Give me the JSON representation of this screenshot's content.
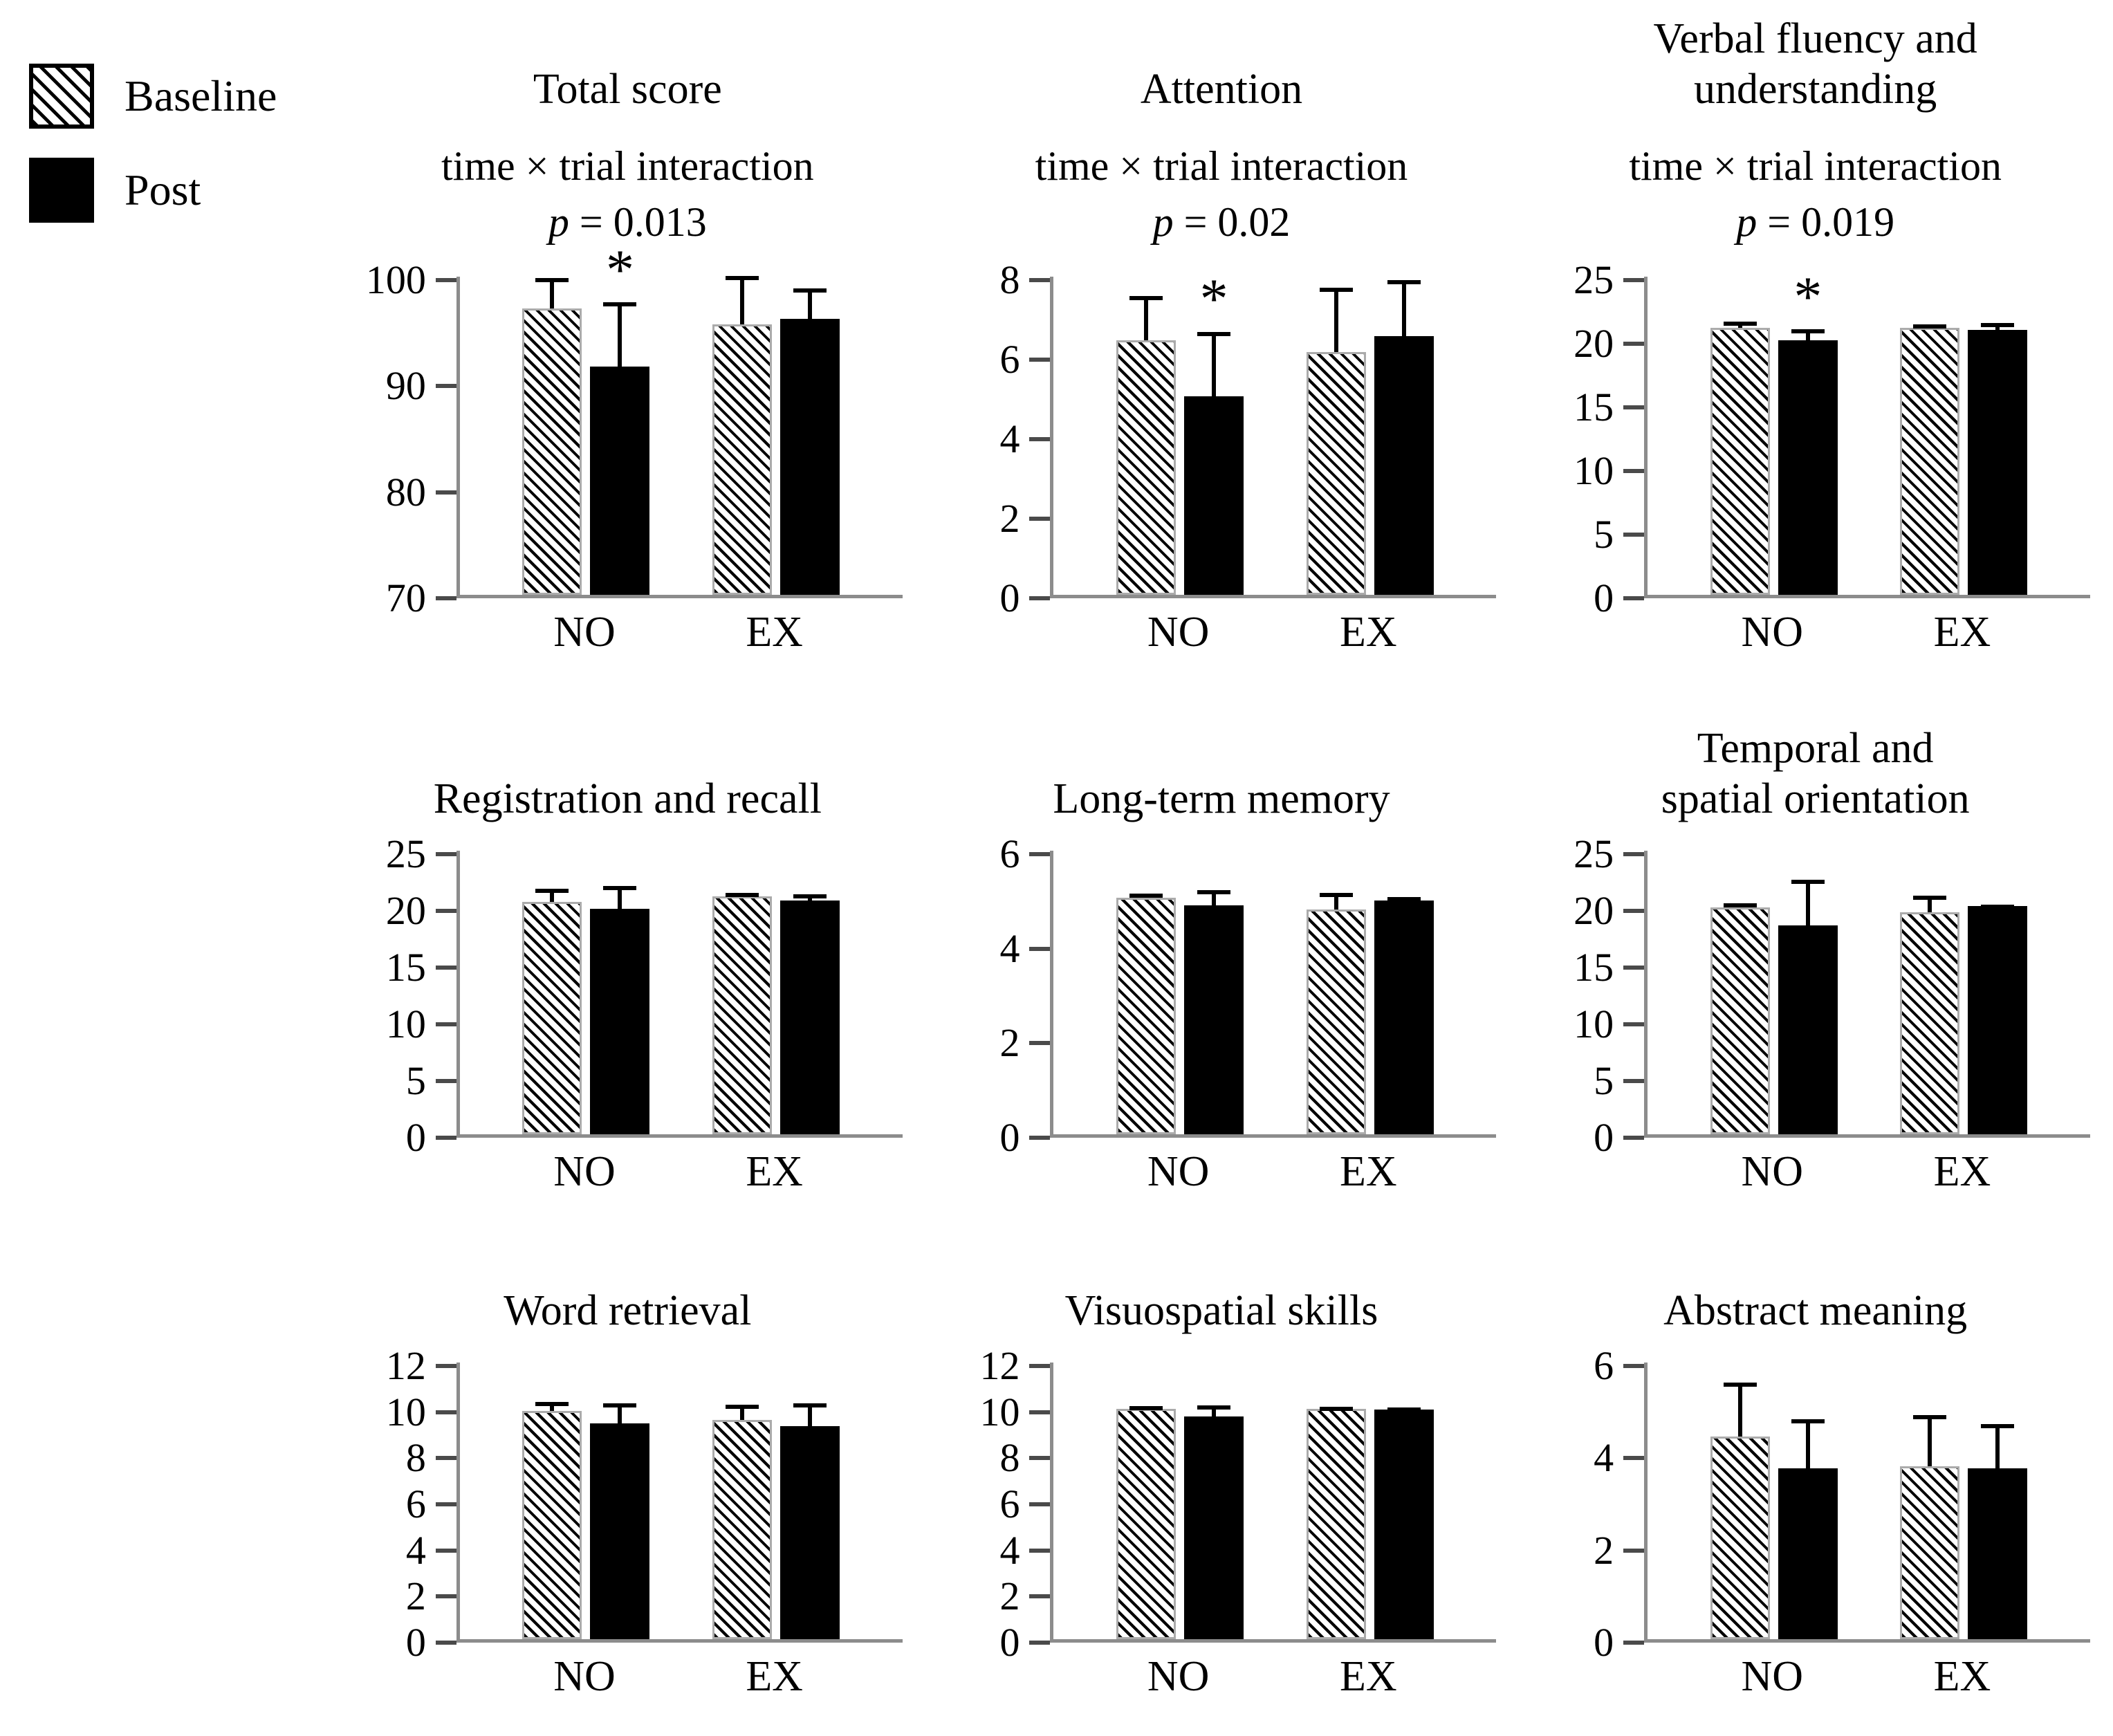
{
  "figure_title": "",
  "legend": {
    "position": "top-left",
    "items": [
      {
        "label": "Baseline",
        "swatch": "hatched-diagonal",
        "color": "#000000"
      },
      {
        "label": "Post",
        "swatch": "solid",
        "color": "#000000"
      }
    ]
  },
  "colors": {
    "bar_fill": "#000000",
    "hatch_line": "#000000",
    "axis_line": "#8c8c8c",
    "text": "#000000"
  },
  "categories": [
    "NO",
    "EX"
  ],
  "series_names": [
    "Baseline",
    "Post"
  ],
  "significance_marker": "*",
  "chart_data": [
    {
      "type": "bar",
      "title_lines": [
        "Total score"
      ],
      "subtitle_lines": [
        "time × trial interaction",
        "p = 0.013"
      ],
      "ymin": 70,
      "ymax": 100,
      "yticks": [
        70,
        80,
        90,
        100
      ],
      "grid": false,
      "groups": [
        {
          "category": "NO",
          "bars": [
            {
              "series": "Baseline",
              "value": 97.0,
              "error_up": 2.8
            },
            {
              "series": "Post",
              "value": 91.5,
              "error_up": 6.0,
              "asterisk": true
            }
          ]
        },
        {
          "category": "EX",
          "bars": [
            {
              "series": "Baseline",
              "value": 95.5,
              "error_up": 4.5
            },
            {
              "series": "Post",
              "value": 96.0,
              "error_up": 2.8
            }
          ]
        }
      ]
    },
    {
      "type": "bar",
      "title_lines": [
        "Attention"
      ],
      "subtitle_lines": [
        "time × trial interaction",
        "p = 0.02"
      ],
      "ymin": 0,
      "ymax": 8,
      "yticks": [
        0,
        2,
        4,
        6,
        8
      ],
      "grid": false,
      "groups": [
        {
          "category": "NO",
          "bars": [
            {
              "series": "Baseline",
              "value": 6.4,
              "error_up": 1.1
            },
            {
              "series": "Post",
              "value": 5.0,
              "error_up": 1.6,
              "asterisk": true
            }
          ]
        },
        {
          "category": "EX",
          "bars": [
            {
              "series": "Baseline",
              "value": 6.1,
              "error_up": 1.6
            },
            {
              "series": "Post",
              "value": 6.5,
              "error_up": 1.4
            }
          ]
        }
      ]
    },
    {
      "type": "bar",
      "title_lines": [
        "Verbal fluency and",
        "understanding"
      ],
      "subtitle_lines": [
        "time × trial interaction",
        "p = 0.019"
      ],
      "ymin": 0,
      "ymax": 25,
      "yticks": [
        0,
        5,
        10,
        15,
        20,
        25
      ],
      "grid": false,
      "groups": [
        {
          "category": "NO",
          "bars": [
            {
              "series": "Baseline",
              "value": 21.0,
              "error_up": 0.4
            },
            {
              "series": "Post",
              "value": 20.0,
              "error_up": 0.8,
              "asterisk": true
            }
          ]
        },
        {
          "category": "EX",
          "bars": [
            {
              "series": "Baseline",
              "value": 21.0,
              "error_up": 0.2
            },
            {
              "series": "Post",
              "value": 20.8,
              "error_up": 0.5
            }
          ]
        }
      ]
    },
    {
      "type": "bar",
      "title_lines": [
        "Registration and recall"
      ],
      "ymin": 0,
      "ymax": 25,
      "yticks": [
        0,
        5,
        10,
        15,
        20,
        25
      ],
      "grid": false,
      "groups": [
        {
          "category": "NO",
          "bars": [
            {
              "series": "Baseline",
              "value": 20.5,
              "error_up": 1.1
            },
            {
              "series": "Post",
              "value": 19.9,
              "error_up": 1.9
            }
          ]
        },
        {
          "category": "EX",
          "bars": [
            {
              "series": "Baseline",
              "value": 21.0,
              "error_up": 0.2
            },
            {
              "series": "Post",
              "value": 20.6,
              "error_up": 0.5
            }
          ]
        }
      ]
    },
    {
      "type": "bar",
      "title_lines": [
        "Long-term memory"
      ],
      "ymin": 0,
      "ymax": 6,
      "yticks": [
        0,
        2,
        4,
        6
      ],
      "grid": false,
      "groups": [
        {
          "category": "NO",
          "bars": [
            {
              "series": "Baseline",
              "value": 5.0,
              "error_up": 0.08
            },
            {
              "series": "Post",
              "value": 4.85,
              "error_up": 0.3
            }
          ]
        },
        {
          "category": "EX",
          "bars": [
            {
              "series": "Baseline",
              "value": 4.75,
              "error_up": 0.35
            },
            {
              "series": "Post",
              "value": 4.95,
              "error_up": 0.06
            }
          ]
        }
      ]
    },
    {
      "type": "bar",
      "title_lines": [
        "Temporal and",
        "spatial orientation"
      ],
      "ymin": 0,
      "ymax": 25,
      "yticks": [
        0,
        5,
        10,
        15,
        20,
        25
      ],
      "grid": false,
      "groups": [
        {
          "category": "NO",
          "bars": [
            {
              "series": "Baseline",
              "value": 20.0,
              "error_up": 0.3
            },
            {
              "series": "Post",
              "value": 18.4,
              "error_up": 4.0
            }
          ]
        },
        {
          "category": "EX",
          "bars": [
            {
              "series": "Baseline",
              "value": 19.6,
              "error_up": 1.4
            },
            {
              "series": "Post",
              "value": 20.1,
              "error_up": 0.1
            }
          ]
        }
      ]
    },
    {
      "type": "bar",
      "title_lines": [
        "Word retrieval"
      ],
      "ymin": 0,
      "ymax": 12,
      "yticks": [
        0,
        2,
        4,
        6,
        8,
        10,
        12
      ],
      "grid": false,
      "groups": [
        {
          "category": "NO",
          "bars": [
            {
              "series": "Baseline",
              "value": 9.9,
              "error_up": 0.35
            },
            {
              "series": "Post",
              "value": 9.35,
              "error_up": 0.85
            }
          ]
        },
        {
          "category": "EX",
          "bars": [
            {
              "series": "Baseline",
              "value": 9.5,
              "error_up": 0.65
            },
            {
              "series": "Post",
              "value": 9.25,
              "error_up": 0.95
            }
          ]
        }
      ]
    },
    {
      "type": "bar",
      "title_lines": [
        "Visuospatial skills"
      ],
      "ymin": 0,
      "ymax": 12,
      "yticks": [
        0,
        2,
        4,
        6,
        8,
        10,
        12
      ],
      "grid": false,
      "groups": [
        {
          "category": "NO",
          "bars": [
            {
              "series": "Baseline",
              "value": 10.0,
              "error_up": 0.08
            },
            {
              "series": "Post",
              "value": 9.65,
              "error_up": 0.45
            }
          ]
        },
        {
          "category": "EX",
          "bars": [
            {
              "series": "Baseline",
              "value": 10.0,
              "error_up": 0.06
            },
            {
              "series": "Post",
              "value": 9.95,
              "error_up": 0.08
            }
          ]
        }
      ]
    },
    {
      "type": "bar",
      "title_lines": [
        "Abstract meaning"
      ],
      "ymin": 0,
      "ymax": 6,
      "yticks": [
        0,
        2,
        4,
        6
      ],
      "grid": false,
      "groups": [
        {
          "category": "NO",
          "bars": [
            {
              "series": "Baseline",
              "value": 4.4,
              "error_up": 1.15
            },
            {
              "series": "Post",
              "value": 3.7,
              "error_up": 1.05
            }
          ]
        },
        {
          "category": "EX",
          "bars": [
            {
              "series": "Baseline",
              "value": 3.75,
              "error_up": 1.1
            },
            {
              "series": "Post",
              "value": 3.7,
              "error_up": 0.95
            }
          ]
        }
      ]
    }
  ]
}
